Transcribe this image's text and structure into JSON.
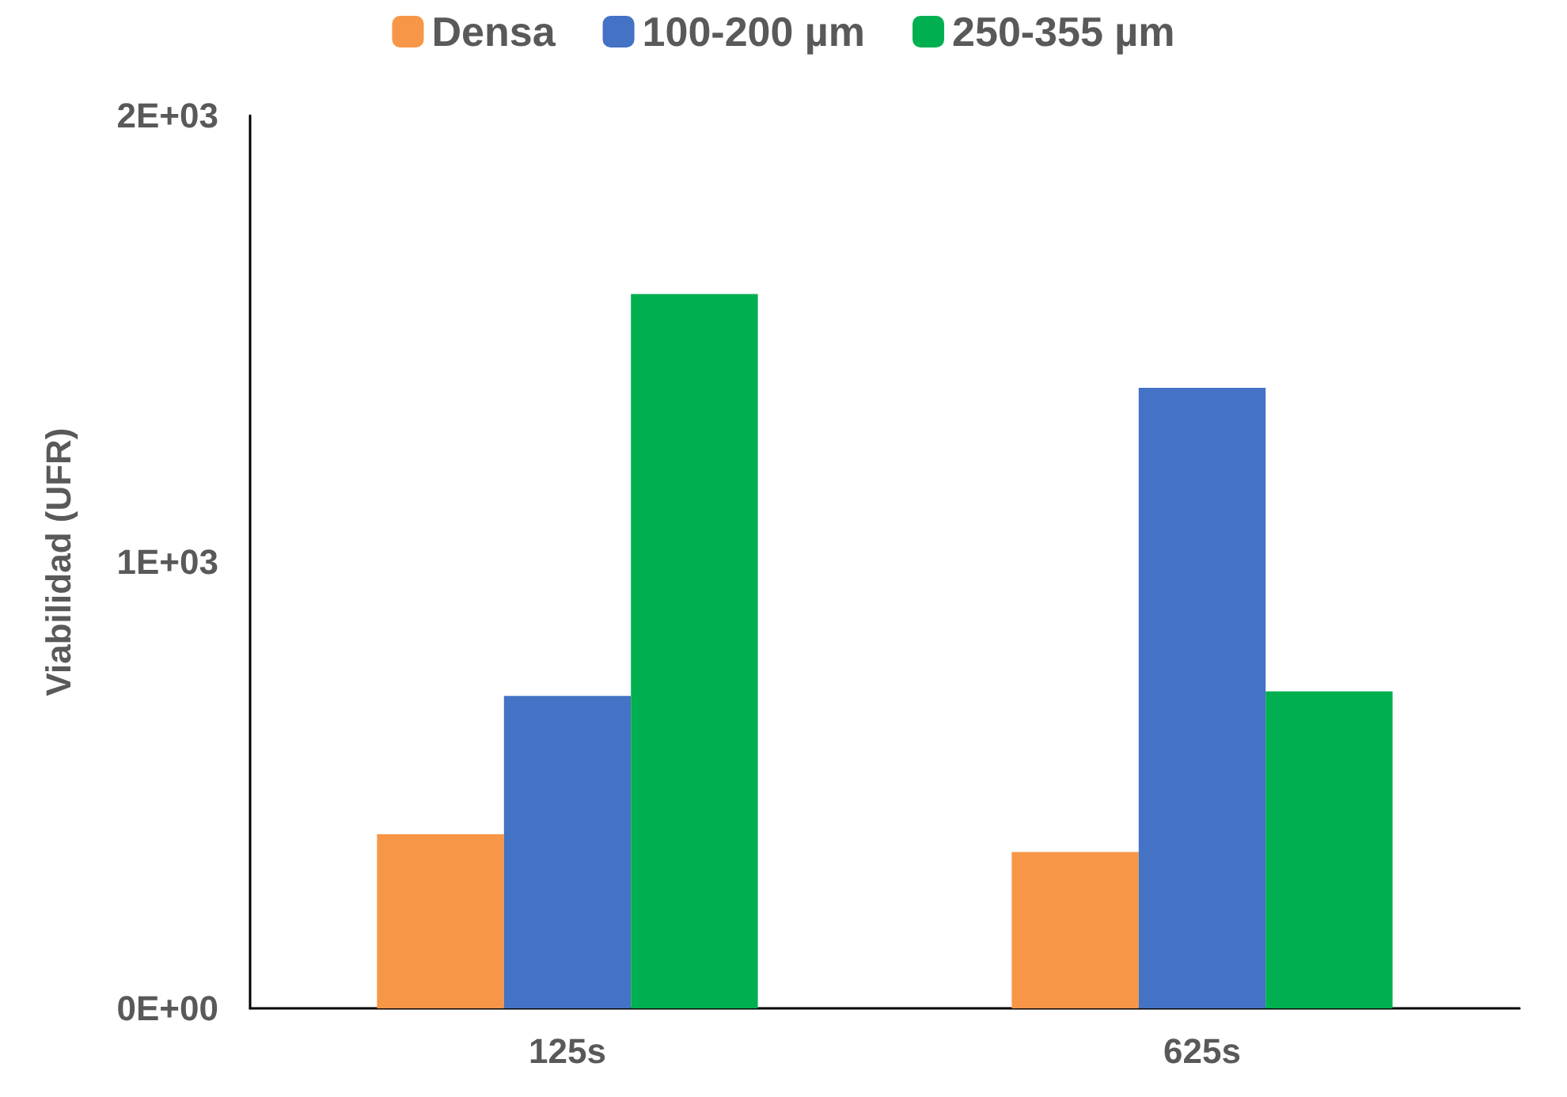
{
  "chart_data": {
    "type": "bar",
    "ylabel": "Viabilidad (UFR)",
    "categories": [
      "125s",
      "625s"
    ],
    "series": [
      {
        "name": "Densa",
        "color": "#f79646",
        "values": [
          390,
          350
        ]
      },
      {
        "name": "100-200 µm",
        "color": "#4472c4",
        "values": [
          700,
          1390
        ]
      },
      {
        "name": "250-355 µm",
        "color": "#00b050",
        "values": [
          1600,
          710
        ]
      }
    ],
    "ylim": [
      0,
      2000
    ],
    "yticks": [
      {
        "value": 0,
        "label": "0E+00"
      },
      {
        "value": 1000,
        "label": "1E+03"
      },
      {
        "value": 2000,
        "label": "2E+03"
      }
    ],
    "grid": false,
    "legend": "top"
  }
}
